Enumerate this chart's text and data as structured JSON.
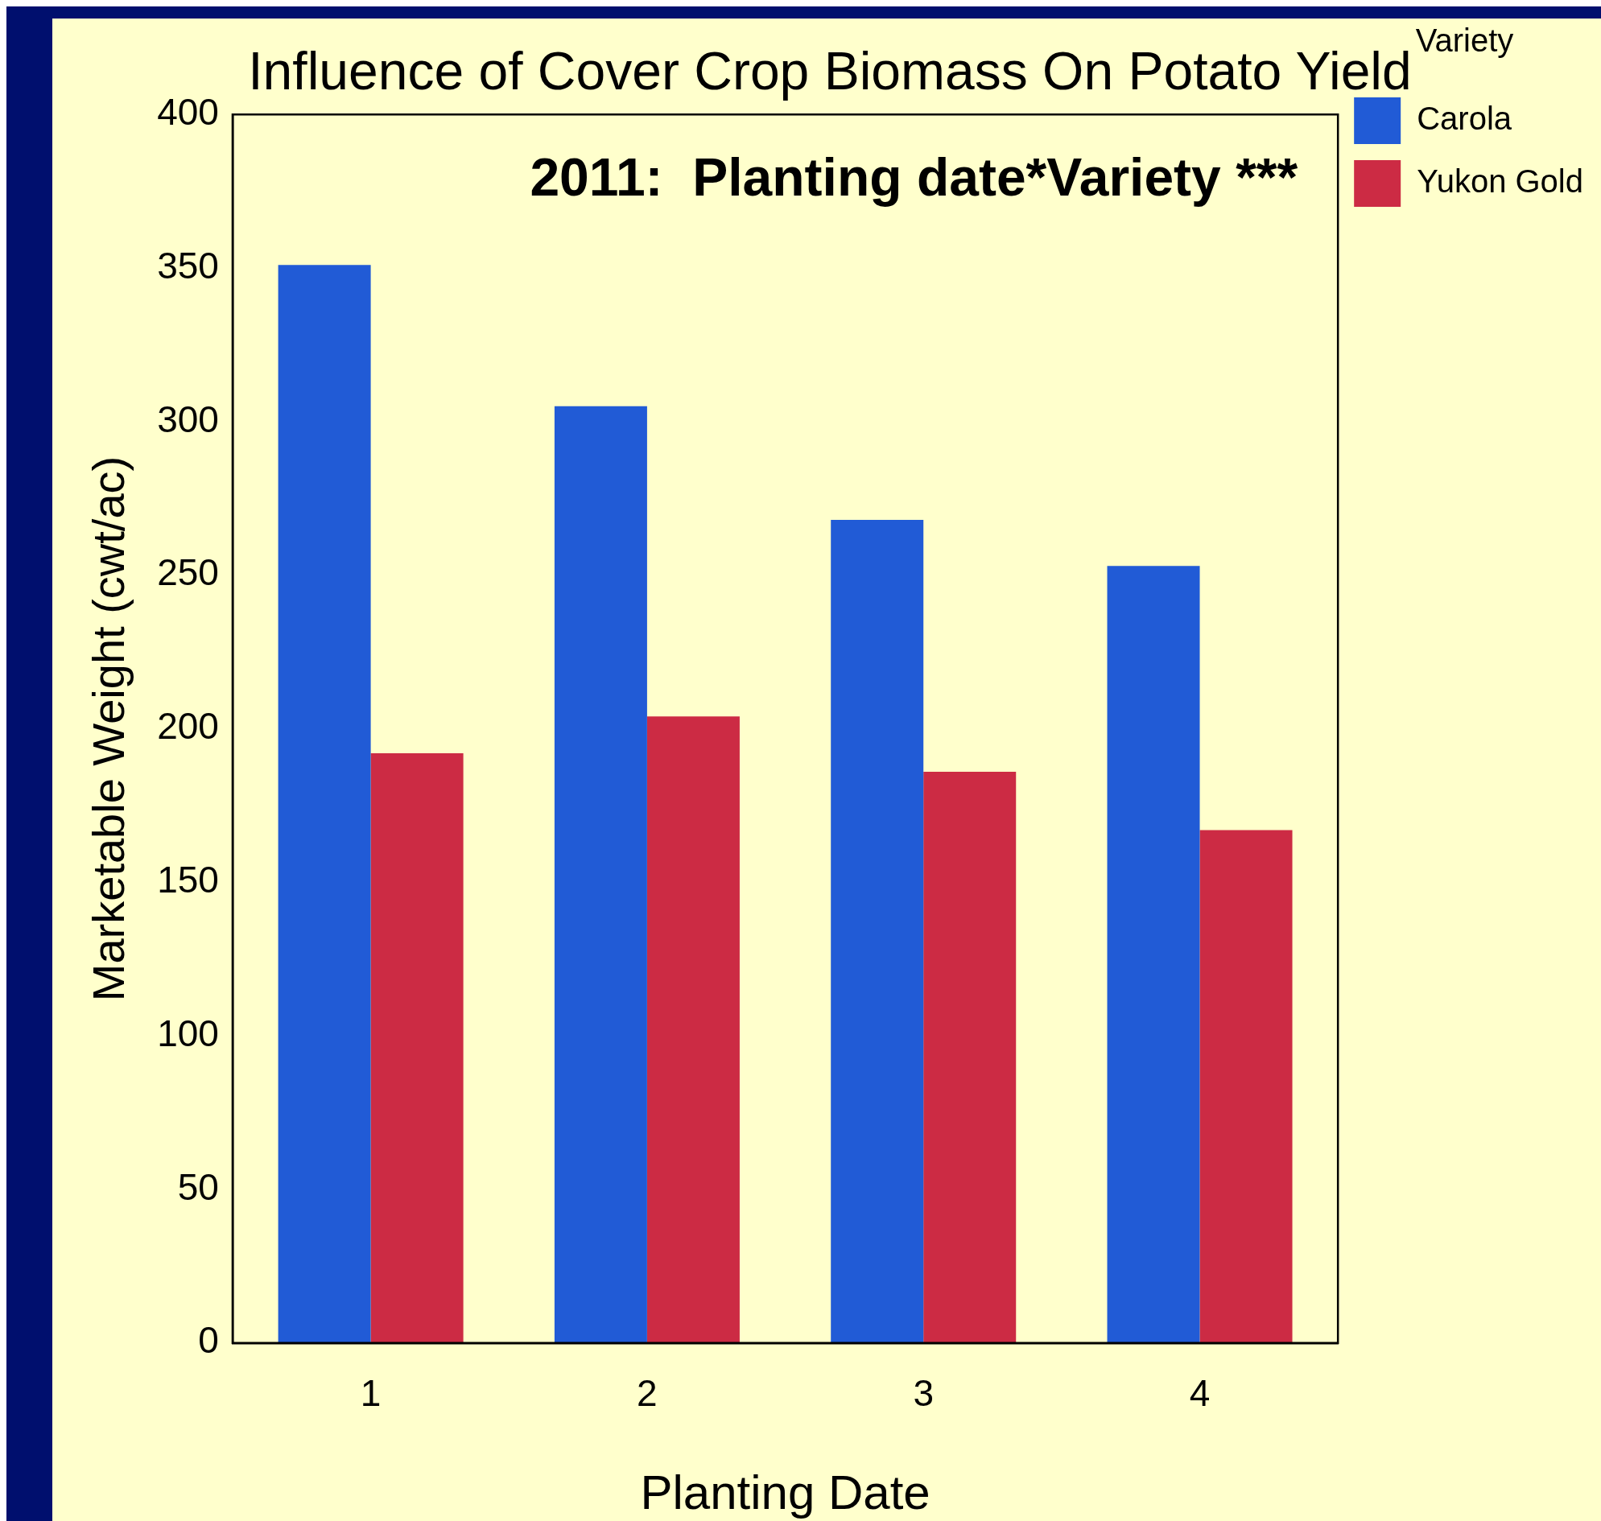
{
  "chart_data": {
    "type": "bar",
    "title": "Influence of Cover Crop Biomass On Potato Yield",
    "xlabel": "Planting Date",
    "ylabel": "Marketable Weight (cwt/ac)",
    "legend_title": "Variety",
    "categories": [
      "1",
      "2",
      "3",
      "4"
    ],
    "series": [
      {
        "name": "Carola",
        "color": "#215bd6",
        "values": [
          351,
          305,
          268,
          253
        ]
      },
      {
        "name": "Yukon Gold",
        "color": "#cc2b44",
        "values": [
          192,
          204,
          186,
          167
        ]
      }
    ],
    "ylim": [
      0,
      400
    ],
    "yticks": [
      0,
      50,
      100,
      150,
      200,
      250,
      300,
      350,
      400
    ],
    "grid": false,
    "legend": "top right",
    "annotations": [
      "2011:  Planting date*Variety ***"
    ]
  }
}
